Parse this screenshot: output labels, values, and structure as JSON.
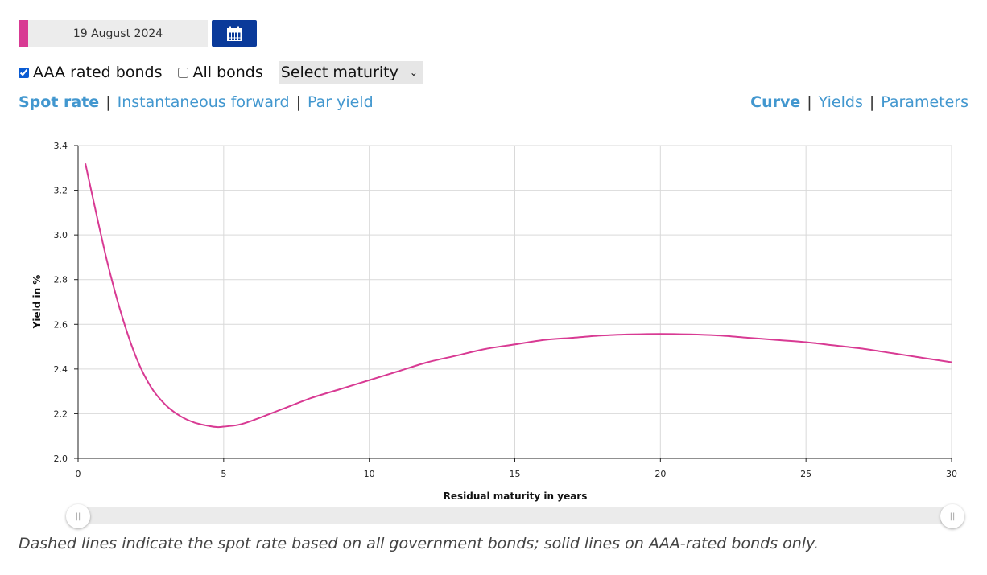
{
  "date_picker": {
    "value": "19 August 2024",
    "icon": "calendar-icon",
    "accent": "#d83a93",
    "button_color": "#0a3a9a"
  },
  "options": {
    "aaa": {
      "label": "AAA rated bonds",
      "checked": true
    },
    "all": {
      "label": "All bonds",
      "checked": false
    },
    "maturity_select": "Select maturity"
  },
  "curve_types": [
    {
      "label": "Spot rate",
      "active": true
    },
    {
      "label": "Instantaneous forward",
      "active": false
    },
    {
      "label": "Par yield",
      "active": false
    }
  ],
  "views": [
    {
      "label": "Curve",
      "active": true
    },
    {
      "label": "Yields",
      "active": false
    },
    {
      "label": "Parameters",
      "active": false
    }
  ],
  "chart_data": {
    "type": "line",
    "title": "",
    "xlabel": "Residual maturity in years",
    "ylabel": "Yield in %",
    "xlim": [
      0,
      30
    ],
    "ylim": [
      2.0,
      3.4
    ],
    "x_ticks": [
      0,
      5,
      10,
      15,
      20,
      25,
      30
    ],
    "y_ticks": [
      "2.0",
      "2.2",
      "2.4",
      "2.6",
      "2.8",
      "3.0",
      "3.2",
      "3.4"
    ],
    "grid": true,
    "series": [
      {
        "name": "AAA rated bonds – spot rate",
        "color": "#d83a93",
        "style": "solid",
        "x": [
          0.25,
          0.5,
          1,
          1.5,
          2,
          2.5,
          3,
          3.5,
          4,
          4.5,
          4.8,
          5,
          5.5,
          6,
          7,
          8,
          9,
          10,
          11,
          12,
          13,
          14,
          15,
          16,
          17,
          18,
          19,
          20,
          21,
          22,
          23,
          24,
          25,
          26,
          27,
          28,
          29,
          30
        ],
        "values": [
          3.32,
          3.17,
          2.88,
          2.64,
          2.45,
          2.32,
          2.24,
          2.19,
          2.16,
          2.145,
          2.14,
          2.142,
          2.15,
          2.17,
          2.22,
          2.27,
          2.31,
          2.35,
          2.39,
          2.43,
          2.46,
          2.49,
          2.51,
          2.53,
          2.54,
          2.55,
          2.555,
          2.557,
          2.555,
          2.55,
          2.54,
          2.53,
          2.52,
          2.505,
          2.49,
          2.47,
          2.45,
          2.43
        ]
      }
    ]
  },
  "range_slider": {
    "min": 0,
    "max": 30,
    "low": 0,
    "high": 30,
    "grip": "||"
  },
  "footnote": "Dashed lines indicate the spot rate based on all government bonds; solid lines on AAA-rated bonds only."
}
